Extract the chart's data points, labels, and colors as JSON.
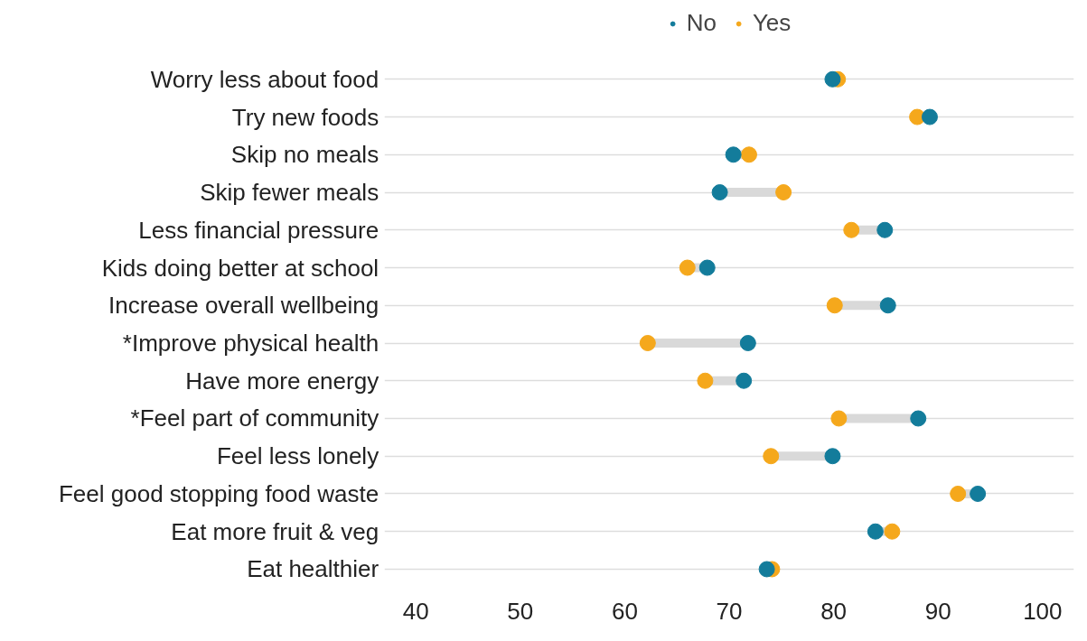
{
  "chart_data": {
    "type": "scatter",
    "orientation": "horizontal",
    "categories": [
      "Worry less about food",
      "Try new foods",
      "Skip no meals",
      "Skip fewer meals",
      "Less financial pressure",
      "Kids doing better at school",
      "Increase overall wellbeing",
      "*Improve physical health",
      "Have more energy",
      "*Feel part of community",
      "Feel less lonely",
      "Feel good stopping food waste",
      "Eat more fruit & veg",
      "Eat healthier"
    ],
    "series": [
      {
        "name": "No",
        "color": "#137c9b",
        "values": [
          79.9,
          89.2,
          70.4,
          69.1,
          84.9,
          67.9,
          85.2,
          71.8,
          71.4,
          88.1,
          79.9,
          93.8,
          84.0,
          73.6
        ]
      },
      {
        "name": "Yes",
        "color": "#f5a81c",
        "values": [
          80.4,
          88.0,
          71.9,
          75.2,
          81.7,
          66.0,
          80.1,
          62.2,
          67.7,
          80.5,
          74.0,
          91.9,
          85.6,
          74.1
        ]
      }
    ],
    "xlim": [
      37,
      103
    ],
    "xticks": [
      40,
      50,
      60,
      70,
      80,
      90,
      100
    ],
    "grid": "y",
    "legend": "top",
    "marker": "circle"
  }
}
